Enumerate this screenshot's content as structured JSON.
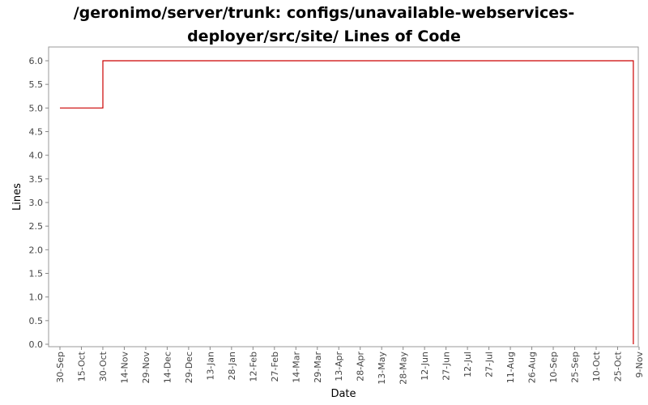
{
  "chart_data": {
    "type": "line",
    "title_lines": [
      "/geronimo/server/trunk: configs/unavailable-webservices-",
      "deployer/src/site/ Lines of Code"
    ],
    "xlabel": "Date",
    "ylabel": "Lines",
    "x_tick_labels": [
      "30-Sep",
      "15-Oct",
      "30-Oct",
      "14-Nov",
      "29-Nov",
      "14-Dec",
      "29-Dec",
      "13-Jan",
      "28-Jan",
      "12-Feb",
      "27-Feb",
      "14-Mar",
      "29-Mar",
      "13-Apr",
      "28-Apr",
      "13-May",
      "28-May",
      "12-Jun",
      "27-Jun",
      "12-Jul",
      "27-Jul",
      "11-Aug",
      "26-Aug",
      "10-Sep",
      "25-Sep",
      "10-Oct",
      "25-Oct",
      "9-Nov"
    ],
    "y_tick_labels": [
      "0.0",
      "0.5",
      "1.0",
      "1.5",
      "2.0",
      "2.5",
      "3.0",
      "3.5",
      "4.0",
      "4.5",
      "5.0",
      "5.5",
      "6.0"
    ],
    "ylim": [
      0,
      6.2
    ],
    "line_color": "#cc0000",
    "series": [
      {
        "x": [
          "30-Sep",
          "30-Oct",
          "30-Oct",
          "5-Nov",
          "5-Nov"
        ],
        "y": [
          5.0,
          5.0,
          6.0,
          6.0,
          0.0
        ]
      }
    ]
  }
}
